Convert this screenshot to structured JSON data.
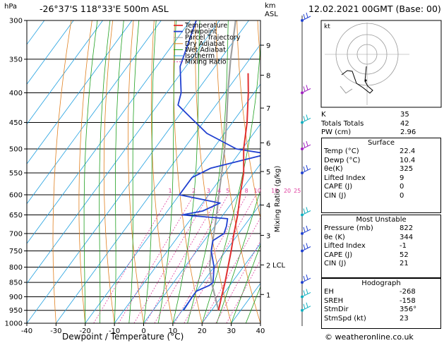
{
  "header": {
    "location": "-26°37'S  118°33'E  500m  ASL",
    "date": "12.02.2021  00GMT  (Base: 00)",
    "hpa_label": "hPa",
    "km_label": "km",
    "asl_label": "ASL",
    "credit": "© weatheronline.co.uk"
  },
  "chart_data": {
    "type": "line",
    "title": "Skew-T log-P sounding",
    "xlabel": "Dewpoint / Temperature (°C)",
    "ylabel_right": "Mixing Ratio (g/kg)",
    "xlim": [
      -40,
      40
    ],
    "ylim_hpa": [
      1000,
      300
    ],
    "x_ticks": [
      "-40",
      "-30",
      "-20",
      "-10",
      "0",
      "10",
      "20",
      "30",
      "40"
    ],
    "p_ticks": [
      "300",
      "350",
      "400",
      "450",
      "500",
      "550",
      "600",
      "650",
      "700",
      "750",
      "800",
      "850",
      "900",
      "950",
      "1000"
    ],
    "km_ticks": [
      {
        "label": "9",
        "p": 331
      },
      {
        "label": "8",
        "p": 373
      },
      {
        "label": "7",
        "p": 425
      },
      {
        "label": "6",
        "p": 488
      },
      {
        "label": "5",
        "p": 547
      },
      {
        "label": "4",
        "p": 625
      },
      {
        "label": "3",
        "p": 705
      },
      {
        "label": "2",
        "p": 793
      },
      {
        "label": "1",
        "p": 892
      }
    ],
    "lcl": {
      "label": "LCL",
      "p": 792
    },
    "mixing_ratio_labels": [
      "1",
      "2",
      "3",
      "4",
      "5",
      "8",
      "10",
      "15",
      "20",
      "25"
    ],
    "legend": [
      "Temperature",
      "Dewpoint",
      "Parcel Trajectory",
      "Dry Adiabat",
      "Wet Adiabat",
      "Isotherm",
      "Mixing Ratio"
    ],
    "series": [
      {
        "name": "Temperature",
        "points": [
          [
            950,
            22.4
          ],
          [
            900,
            20
          ],
          [
            850,
            17.6
          ],
          [
            800,
            14.8
          ],
          [
            750,
            11.8
          ],
          [
            700,
            8.4
          ],
          [
            650,
            5
          ],
          [
            600,
            0.8
          ],
          [
            550,
            -3.5
          ],
          [
            500,
            -9.5
          ],
          [
            450,
            -15
          ],
          [
            400,
            -22
          ],
          [
            370,
            -27
          ]
        ]
      },
      {
        "name": "Dewpoint",
        "points": [
          [
            950,
            10.4
          ],
          [
            900,
            10
          ],
          [
            880,
            10
          ],
          [
            860,
            13
          ],
          [
            850,
            13.5
          ],
          [
            800,
            10
          ],
          [
            750,
            5
          ],
          [
            720,
            3
          ],
          [
            700,
            5
          ],
          [
            680,
            4
          ],
          [
            660,
            2.5
          ],
          [
            650,
            -14
          ],
          [
            640,
            -8
          ],
          [
            620,
            -4
          ],
          [
            600,
            -20
          ],
          [
            560,
            -20
          ],
          [
            540,
            -16
          ],
          [
            510,
            0
          ],
          [
            500,
            -12
          ],
          [
            470,
            -26
          ],
          [
            440,
            -36
          ],
          [
            420,
            -43
          ],
          [
            400,
            -45
          ],
          [
            360,
            -52
          ],
          [
            300,
            -58
          ]
        ]
      },
      {
        "name": "Parcel Trajectory",
        "points": [
          [
            950,
            22.4
          ],
          [
            900,
            17.8
          ],
          [
            850,
            13
          ],
          [
            800,
            8.5
          ],
          [
            750,
            5
          ],
          [
            700,
            1.5
          ],
          [
            650,
            -2.2
          ],
          [
            600,
            -6.5
          ],
          [
            550,
            -11
          ],
          [
            500,
            -16
          ],
          [
            450,
            -22
          ],
          [
            400,
            -29
          ],
          [
            350,
            -36.5
          ],
          [
            300,
            -44.5
          ]
        ]
      }
    ]
  },
  "indices": [
    {
      "label": "K",
      "value": "35"
    },
    {
      "label": "Totals Totals",
      "value": "42"
    },
    {
      "label": "PW (cm)",
      "value": "2.96"
    }
  ],
  "surface": {
    "title": "Surface",
    "rows": [
      {
        "label": "Temp (°C)",
        "value": "22.4"
      },
      {
        "label": "Dewp (°C)",
        "value": "10.4"
      },
      {
        "label": "θe(K)",
        "value": "325"
      },
      {
        "label": "Lifted Index",
        "value": "9"
      },
      {
        "label": "CAPE (J)",
        "value": "0"
      },
      {
        "label": "CIN (J)",
        "value": "0"
      }
    ]
  },
  "most_unstable": {
    "title": "Most Unstable",
    "rows": [
      {
        "label": "Pressure (mb)",
        "value": "822"
      },
      {
        "label": "θe (K)",
        "value": "344"
      },
      {
        "label": "Lifted Index",
        "value": "-1"
      },
      {
        "label": "CAPE (J)",
        "value": "52"
      },
      {
        "label": "CIN (J)",
        "value": "21"
      }
    ]
  },
  "hodograph": {
    "title": "Hodograph",
    "unit": "kt",
    "rows": [
      {
        "label": "EH",
        "value": "-268"
      },
      {
        "label": "SREH",
        "value": "-158"
      },
      {
        "label": "StmDir",
        "value": "356°"
      },
      {
        "label": "StmSpd (kt)",
        "value": "23"
      }
    ]
  },
  "colors": {
    "temperature": "#e03030",
    "dewpoint": "#2040d0",
    "parcel": "#a0a0a0",
    "dry_adiabat": "#e08020",
    "wet_adiabat": "#20a020",
    "isotherm": "#20a0e0",
    "mixing_ratio": "#e040a0",
    "wind": "#10b0c0"
  }
}
